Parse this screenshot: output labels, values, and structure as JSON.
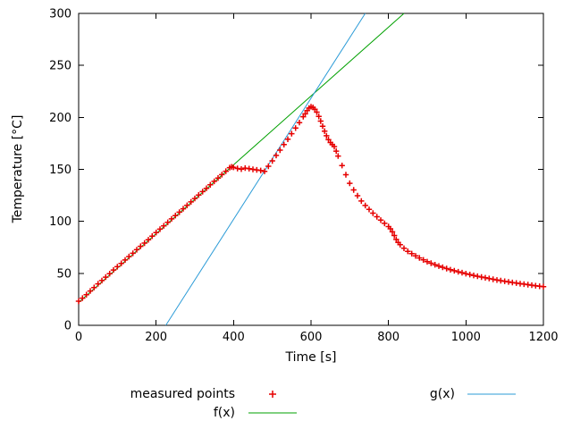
{
  "chart_data": {
    "type": "scatter",
    "title": "",
    "xlabel": "Time [s]",
    "ylabel": "Temperature [°C]",
    "xlim": [
      0,
      1200
    ],
    "ylim": [
      0,
      300
    ],
    "xticks": [
      0,
      200,
      400,
      600,
      800,
      1000,
      1200
    ],
    "yticks": [
      0,
      50,
      100,
      150,
      200,
      250,
      300
    ],
    "grid": false,
    "legend_position": "below-plot",
    "colors": {
      "measured": "#e60000",
      "f": "#00a000",
      "g": "#2b9bd7",
      "axis": "#000000",
      "background": "#ffffff"
    },
    "series": [
      {
        "name": "measured points",
        "type": "points",
        "marker": "plus",
        "color_key": "measured",
        "points": [
          [
            0,
            23.2
          ],
          [
            10,
            26.1
          ],
          [
            20,
            29.5
          ],
          [
            30,
            33.0
          ],
          [
            40,
            36.4
          ],
          [
            50,
            39.9
          ],
          [
            60,
            43.1
          ],
          [
            70,
            46.3
          ],
          [
            80,
            49.7
          ],
          [
            90,
            53.2
          ],
          [
            100,
            56.4
          ],
          [
            110,
            59.6
          ],
          [
            120,
            62.8
          ],
          [
            130,
            66.1
          ],
          [
            140,
            69.3
          ],
          [
            150,
            72.7
          ],
          [
            160,
            76.0
          ],
          [
            170,
            79.1
          ],
          [
            180,
            82.3
          ],
          [
            190,
            85.8
          ],
          [
            200,
            89.2
          ],
          [
            210,
            92.5
          ],
          [
            220,
            95.7
          ],
          [
            230,
            99.0
          ],
          [
            240,
            102.4
          ],
          [
            250,
            105.6
          ],
          [
            260,
            108.8
          ],
          [
            270,
            112.1
          ],
          [
            280,
            115.4
          ],
          [
            290,
            118.7
          ],
          [
            300,
            122.0
          ],
          [
            310,
            125.3
          ],
          [
            320,
            128.6
          ],
          [
            330,
            131.8
          ],
          [
            340,
            135.1
          ],
          [
            350,
            138.5
          ],
          [
            360,
            141.7
          ],
          [
            370,
            144.9
          ],
          [
            380,
            148.2
          ],
          [
            390,
            151.6
          ],
          [
            395,
            152.4
          ],
          [
            400,
            152.0
          ],
          [
            410,
            150.9
          ],
          [
            420,
            150.3
          ],
          [
            430,
            151.2
          ],
          [
            440,
            150.7
          ],
          [
            450,
            150.0
          ],
          [
            460,
            149.5
          ],
          [
            470,
            148.9
          ],
          [
            480,
            148.1
          ],
          [
            490,
            153.0
          ],
          [
            500,
            158.2
          ],
          [
            510,
            163.4
          ],
          [
            520,
            168.5
          ],
          [
            530,
            173.8
          ],
          [
            540,
            179.0
          ],
          [
            550,
            184.3
          ],
          [
            560,
            189.7
          ],
          [
            570,
            195.0
          ],
          [
            580,
            200.6
          ],
          [
            585,
            203.4
          ],
          [
            590,
            206.6
          ],
          [
            595,
            209.0
          ],
          [
            600,
            210.3
          ],
          [
            605,
            209.6
          ],
          [
            610,
            207.8
          ],
          [
            615,
            205.0
          ],
          [
            620,
            200.9
          ],
          [
            625,
            196.4
          ],
          [
            630,
            191.5
          ],
          [
            635,
            186.8
          ],
          [
            640,
            182.3
          ],
          [
            645,
            178.6
          ],
          [
            650,
            175.8
          ],
          [
            655,
            173.9
          ],
          [
            660,
            171.9
          ],
          [
            665,
            167.5
          ],
          [
            670,
            162.8
          ],
          [
            680,
            153.7
          ],
          [
            690,
            144.8
          ],
          [
            700,
            136.6
          ],
          [
            710,
            130.2
          ],
          [
            720,
            124.6
          ],
          [
            730,
            119.6
          ],
          [
            740,
            115.3
          ],
          [
            750,
            111.5
          ],
          [
            760,
            107.9
          ],
          [
            770,
            104.4
          ],
          [
            780,
            101.2
          ],
          [
            790,
            98.1
          ],
          [
            800,
            95.0
          ],
          [
            805,
            92.8
          ],
          [
            810,
            89.9
          ],
          [
            815,
            86.4
          ],
          [
            820,
            82.6
          ],
          [
            825,
            79.8
          ],
          [
            830,
            77.5
          ],
          [
            840,
            74.1
          ],
          [
            850,
            71.2
          ],
          [
            860,
            68.9
          ],
          [
            870,
            66.8
          ],
          [
            880,
            64.8
          ],
          [
            890,
            62.9
          ],
          [
            900,
            61.2
          ],
          [
            910,
            59.7
          ],
          [
            920,
            58.3
          ],
          [
            930,
            57.0
          ],
          [
            940,
            55.8
          ],
          [
            950,
            54.6
          ],
          [
            960,
            53.5
          ],
          [
            970,
            52.5
          ],
          [
            980,
            51.5
          ],
          [
            990,
            50.6
          ],
          [
            1000,
            49.7
          ],
          [
            1010,
            48.8
          ],
          [
            1020,
            48.0
          ],
          [
            1030,
            47.2
          ],
          [
            1040,
            46.4
          ],
          [
            1050,
            45.7
          ],
          [
            1060,
            45.0
          ],
          [
            1070,
            44.3
          ],
          [
            1080,
            43.6
          ],
          [
            1090,
            43.0
          ],
          [
            1100,
            42.4
          ],
          [
            1110,
            41.8
          ],
          [
            1120,
            41.2
          ],
          [
            1130,
            40.7
          ],
          [
            1140,
            40.1
          ],
          [
            1150,
            39.6
          ],
          [
            1160,
            39.1
          ],
          [
            1170,
            38.6
          ],
          [
            1180,
            38.1
          ],
          [
            1190,
            37.6
          ],
          [
            1200,
            37.2
          ]
        ]
      },
      {
        "name": "f(x)",
        "type": "line",
        "color_key": "f",
        "points": [
          [
            0,
            22
          ],
          [
            840,
            300
          ]
        ]
      },
      {
        "name": "g(x)",
        "type": "line",
        "color_key": "g",
        "points": [
          [
            225,
            0
          ],
          [
            740,
            300
          ]
        ]
      }
    ],
    "legend": {
      "items": [
        {
          "label": "measured points",
          "series": 0,
          "row": 0,
          "col": 0
        },
        {
          "label": "f(x)",
          "series": 1,
          "row": 1,
          "col": 0
        },
        {
          "label": "g(x)",
          "series": 2,
          "row": 0,
          "col": 1
        }
      ]
    }
  }
}
